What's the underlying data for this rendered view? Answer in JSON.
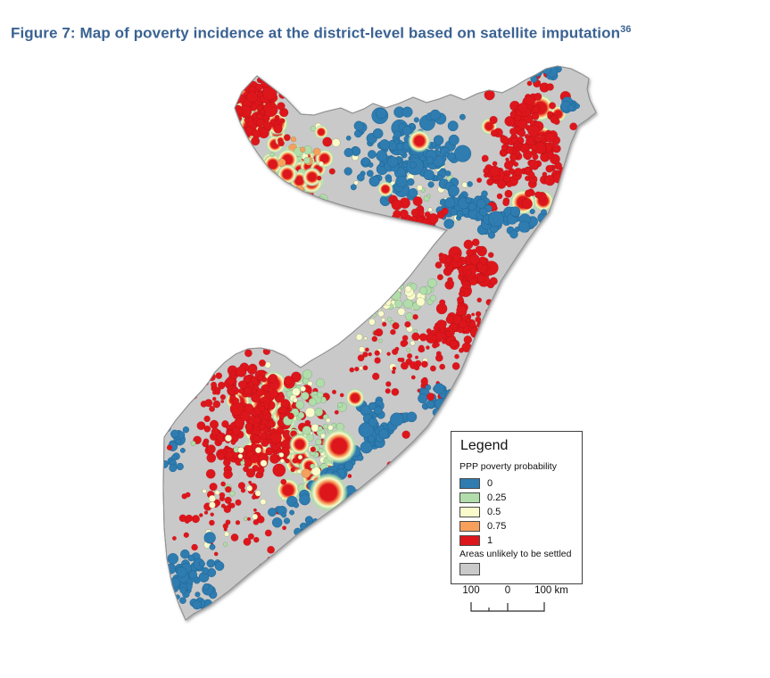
{
  "figure": {
    "title": "Figure 7: Map of poverty incidence at the district-level based on satellite imputation",
    "footnote_ref": "36"
  },
  "legend": {
    "title": "Legend",
    "subtitle": "PPP poverty probability",
    "items": [
      {
        "label": "0",
        "color": "#2e7cb0"
      },
      {
        "label": "0.25",
        "color": "#b0ddaa"
      },
      {
        "label": "0.5",
        "color": "#fafbcb"
      },
      {
        "label": "0.75",
        "color": "#f6a05c"
      },
      {
        "label": "1",
        "color": "#dd161c"
      }
    ],
    "areas_label": "Areas unlikely to be settled",
    "areas_color": "#c9c9c9"
  },
  "scalebar": {
    "left_label": "100",
    "zero_label": "0",
    "right_label": "100 km"
  }
}
